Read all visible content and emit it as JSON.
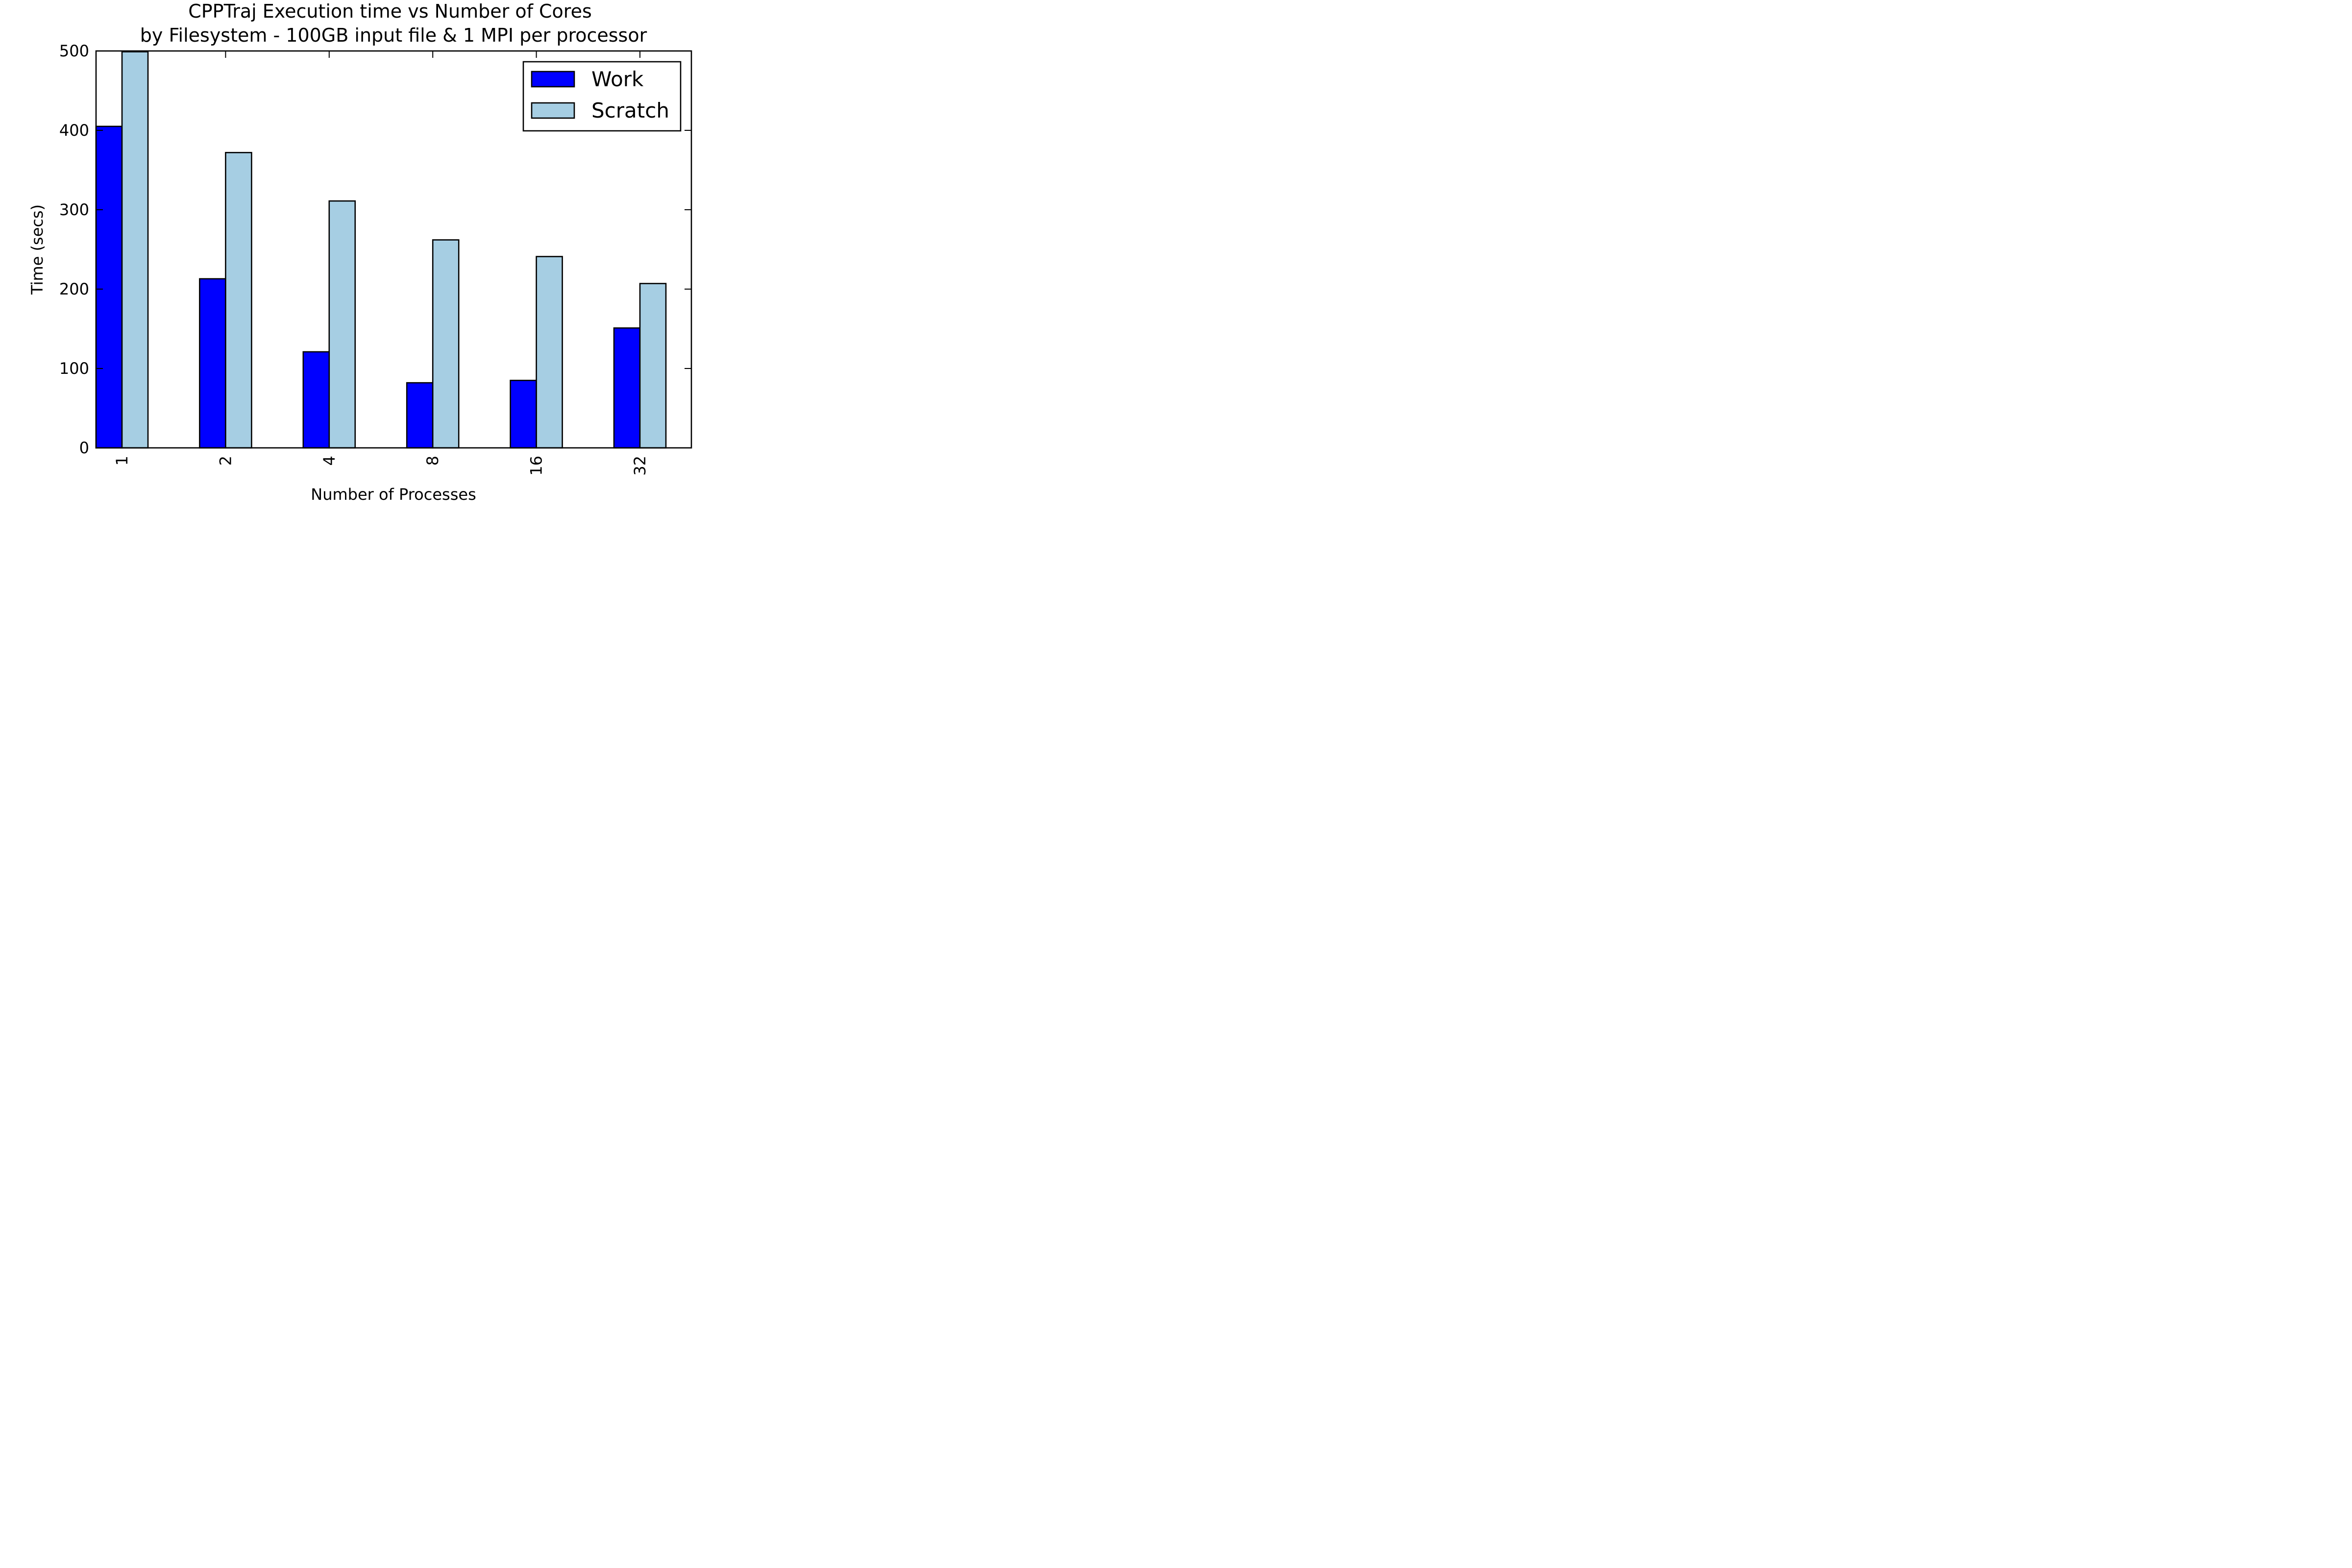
{
  "chart_data": {
    "type": "bar",
    "title": "CPPTraj Execution time vs Number of Cores",
    "subtitle": "by Filesystem - 100GB input file & 1 MPI per processor",
    "xlabel": "Number of Processes",
    "ylabel": "Time (secs)",
    "categories": [
      "1",
      "2",
      "4",
      "8",
      "16",
      "32"
    ],
    "series": [
      {
        "name": "Work",
        "color": "#0000ff",
        "values": [
          405,
          213,
          121,
          82,
          85,
          151
        ]
      },
      {
        "name": "Scratch",
        "color": "#a6cee3",
        "values": [
          499,
          372,
          311,
          262,
          241,
          207
        ]
      }
    ],
    "ylim": [
      0,
      500
    ],
    "yticks": [
      "0",
      "100",
      "200",
      "300",
      "400",
      "500"
    ],
    "legend": "top-right",
    "grid": false
  }
}
